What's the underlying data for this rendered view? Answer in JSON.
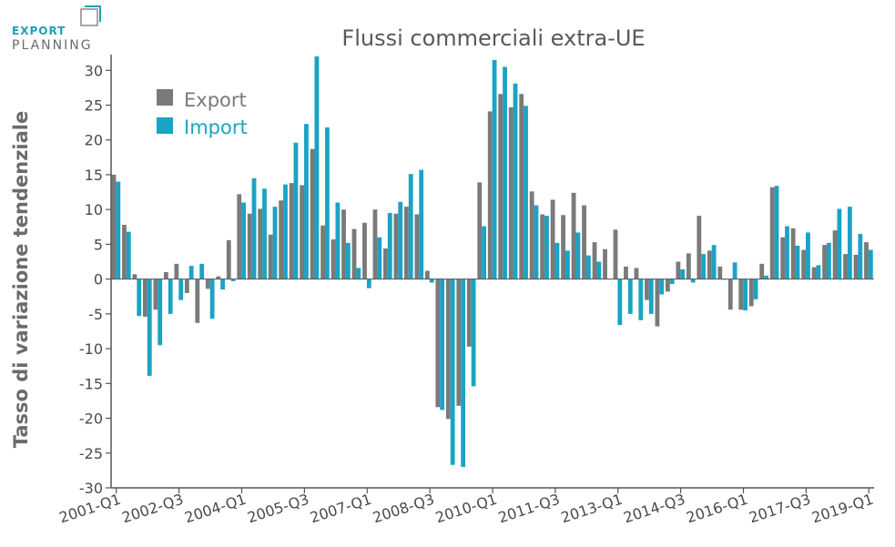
{
  "logo": {
    "line1": "EXPORT",
    "line2": "PLANNING"
  },
  "colors": {
    "export": "#7a7a7a",
    "import": "#1aa3c4",
    "axis": "#555555",
    "title": "#595959"
  },
  "chart_data": {
    "type": "bar",
    "title": "Flussi commerciali extra-UE",
    "ylabel": "Tasso di variazione tendenziale",
    "xlabel": "",
    "ylim": [
      -30,
      32
    ],
    "yticks": [
      -30,
      -25,
      -20,
      -15,
      -10,
      -5,
      0,
      5,
      10,
      15,
      20,
      25,
      30
    ],
    "grid": false,
    "legend_position": "top-left",
    "x_tick_labels": [
      "2001-Q1",
      "2002-Q3",
      "2004-Q1",
      "2005-Q3",
      "2007-Q1",
      "2008-Q3",
      "2010-Q1",
      "2011-Q3",
      "2013-Q1",
      "2014-Q3",
      "2016-Q1",
      "2017-Q3",
      "2019-Q1"
    ],
    "x_tick_index": [
      0,
      6,
      12,
      18,
      24,
      30,
      36,
      42,
      48,
      54,
      60,
      66,
      72
    ],
    "categories": [
      "2001-Q1",
      "2001-Q2",
      "2001-Q3",
      "2001-Q4",
      "2002-Q1",
      "2002-Q2",
      "2002-Q3",
      "2002-Q4",
      "2003-Q1",
      "2003-Q2",
      "2003-Q3",
      "2003-Q4",
      "2004-Q1",
      "2004-Q2",
      "2004-Q3",
      "2004-Q4",
      "2005-Q1",
      "2005-Q2",
      "2005-Q3",
      "2005-Q4",
      "2006-Q1",
      "2006-Q2",
      "2006-Q3",
      "2006-Q4",
      "2007-Q1",
      "2007-Q2",
      "2007-Q3",
      "2007-Q4",
      "2008-Q1",
      "2008-Q2",
      "2008-Q3",
      "2008-Q4",
      "2009-Q1",
      "2009-Q2",
      "2009-Q3",
      "2009-Q4",
      "2010-Q1",
      "2010-Q2",
      "2010-Q3",
      "2010-Q4",
      "2011-Q1",
      "2011-Q2",
      "2011-Q3",
      "2011-Q4",
      "2012-Q1",
      "2012-Q2",
      "2012-Q3",
      "2012-Q4",
      "2013-Q1",
      "2013-Q2",
      "2013-Q3",
      "2013-Q4",
      "2014-Q1",
      "2014-Q2",
      "2014-Q3",
      "2014-Q4",
      "2015-Q1",
      "2015-Q2",
      "2015-Q3",
      "2015-Q4",
      "2016-Q1",
      "2016-Q2",
      "2016-Q3",
      "2016-Q4",
      "2017-Q1",
      "2017-Q2",
      "2017-Q3",
      "2017-Q4",
      "2018-Q1",
      "2018-Q2",
      "2018-Q3",
      "2018-Q4",
      "2019-Q1"
    ],
    "series": [
      {
        "name": "Export",
        "values": [
          15.0,
          7.8,
          0.7,
          -5.4,
          -4.4,
          1.0,
          2.2,
          -2.0,
          -6.3,
          -1.4,
          0.4,
          5.6,
          12.2,
          9.4,
          10.1,
          6.4,
          11.3,
          13.8,
          13.5,
          18.7,
          7.7,
          5.7,
          10.0,
          7.2,
          8.1,
          10.0,
          4.4,
          9.4,
          10.4,
          9.3,
          1.2,
          -18.4,
          -20.1,
          -18.2,
          -9.7,
          13.9,
          24.1,
          26.6,
          24.7,
          26.6,
          12.6,
          9.3,
          11.4,
          9.2,
          12.4,
          10.6,
          5.3,
          4.3,
          7.1,
          1.8,
          1.6,
          -3.0,
          -6.8,
          -1.8,
          2.5,
          3.7,
          9.1,
          4.1,
          1.8,
          -4.4,
          -4.4,
          -3.9,
          2.2,
          13.2,
          6.0,
          7.3,
          4.2,
          1.7,
          4.9,
          7.0,
          3.6,
          3.5,
          5.3
        ]
      },
      {
        "name": "Import",
        "values": [
          14.0,
          6.8,
          -5.3,
          -13.9,
          -9.5,
          -5.0,
          -3.0,
          1.9,
          2.2,
          -5.7,
          -1.5,
          -0.3,
          11.0,
          14.5,
          13.0,
          10.4,
          13.6,
          19.6,
          22.3,
          32.0,
          21.8,
          11.0,
          5.2,
          1.6,
          -1.3,
          6.0,
          9.5,
          11.1,
          15.1,
          15.7,
          -0.5,
          -18.8,
          -26.7,
          -27.0,
          -15.4,
          7.6,
          31.5,
          30.5,
          28.1,
          24.9,
          10.6,
          9.1,
          5.2,
          4.1,
          6.7,
          3.4,
          2.5,
          0.0,
          -6.6,
          -5.0,
          -5.9,
          -5.0,
          -2.2,
          -0.7,
          1.4,
          -0.5,
          3.6,
          4.9,
          -0.1,
          2.4,
          -4.5,
          -2.9,
          0.5,
          13.4,
          7.6,
          4.8,
          6.7,
          2.0,
          5.2,
          10.1,
          10.4,
          6.5,
          4.2
        ]
      }
    ]
  }
}
